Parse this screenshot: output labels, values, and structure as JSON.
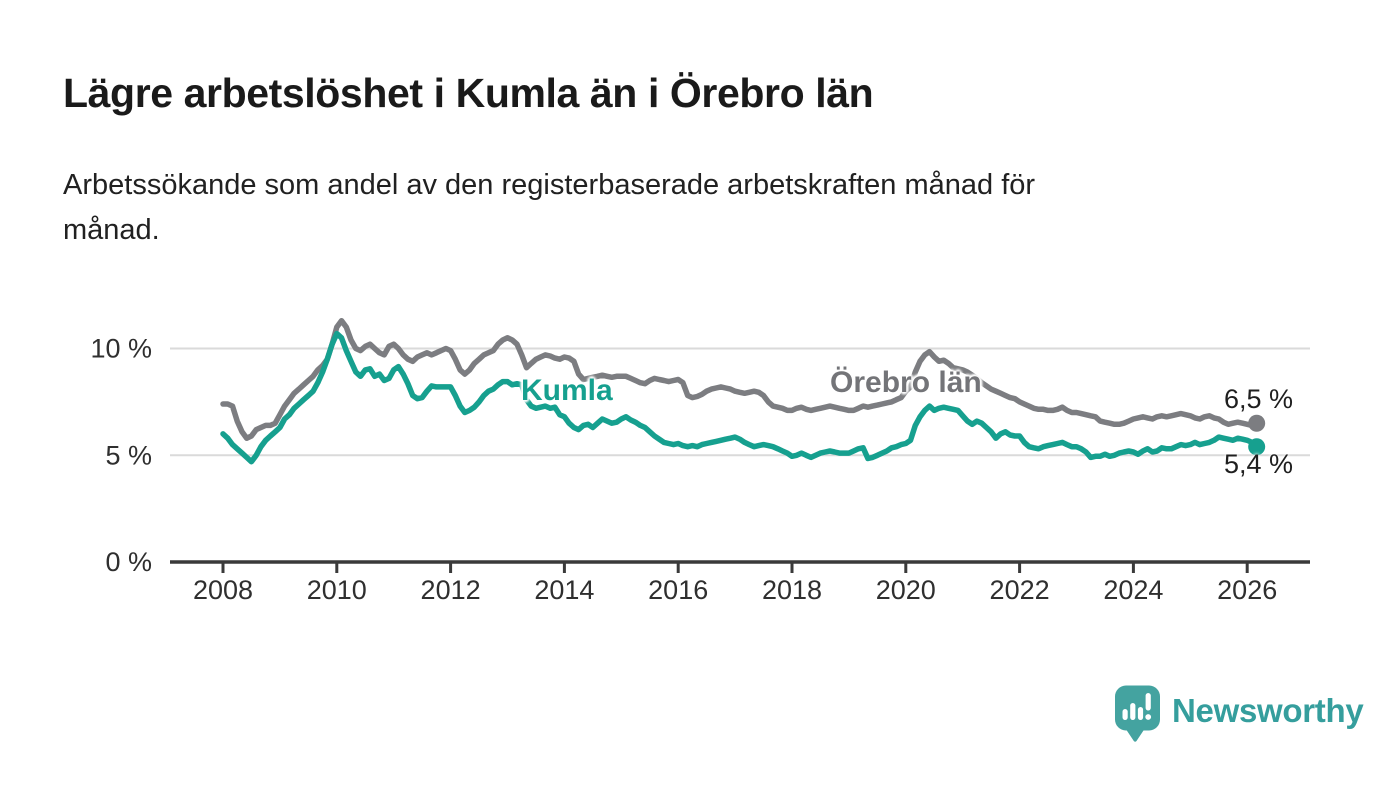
{
  "header": {
    "title": "Lägre arbetslöshet i Kumla än i Örebro län",
    "subtitle": "Arbetssökande som andel av den registerbaserade arbetskraften månad för\nmånad."
  },
  "branding": {
    "logo_text": "Newsworthy",
    "logo_color": "#44a3a0",
    "logo_text_color": "#359e9d"
  },
  "annotations": {
    "series_label_kumla": "Kumla",
    "series_label_orebro": "Örebro län",
    "end_value_orebro": "6,5 %",
    "end_value_kumla": "5,4 %"
  },
  "colors": {
    "kumla_line": "#16a08f",
    "orebro_line": "#7c7d81",
    "grid": "#dadada",
    "axis": "#3a3a3a",
    "axis_text": "#2f2f2f"
  },
  "chart_data": {
    "type": "line",
    "title": "Lägre arbetslöshet i Kumla än i Örebro län",
    "xlabel": "",
    "ylabel": "Arbetssökande som andel av den registerbaserade arbetskraften",
    "unit": "%",
    "frequency": "monthly",
    "start_month": "2008-01",
    "end_month": "2026-03",
    "x_ticks": [
      2008,
      2010,
      2012,
      2014,
      2016,
      2018,
      2020,
      2022,
      2024,
      2026
    ],
    "y_ticks": [
      0,
      5,
      10
    ],
    "y_tick_labels": [
      "0 %",
      "5 %",
      "10 %"
    ],
    "ylim": [
      0,
      11.6
    ],
    "grid": "horizontal",
    "legend_position": "inline-labels",
    "series": [
      {
        "name": "Örebro län",
        "color": "#7c7d81",
        "last_value_label": "6,5 %",
        "values": [
          7.4,
          7.4,
          7.3,
          6.6,
          6.1,
          5.8,
          5.9,
          6.2,
          6.3,
          6.4,
          6.4,
          6.5,
          6.9,
          7.3,
          7.6,
          7.9,
          8.1,
          8.3,
          8.5,
          8.7,
          9.0,
          9.2,
          9.5,
          10.2,
          11.0,
          11.3,
          11.0,
          10.4,
          10.0,
          9.9,
          10.1,
          10.2,
          10.0,
          9.8,
          9.7,
          10.1,
          10.2,
          10.0,
          9.7,
          9.5,
          9.4,
          9.6,
          9.7,
          9.8,
          9.7,
          9.8,
          9.9,
          10.0,
          9.9,
          9.5,
          9.0,
          8.8,
          9.0,
          9.3,
          9.5,
          9.7,
          9.8,
          9.9,
          10.2,
          10.4,
          10.5,
          10.4,
          10.2,
          9.7,
          9.1,
          9.3,
          9.5,
          9.6,
          9.7,
          9.65,
          9.55,
          9.5,
          9.6,
          9.55,
          9.4,
          8.8,
          8.55,
          8.6,
          8.65,
          8.7,
          8.75,
          8.7,
          8.65,
          8.7,
          8.7,
          8.7,
          8.6,
          8.5,
          8.4,
          8.35,
          8.5,
          8.6,
          8.55,
          8.5,
          8.45,
          8.5,
          8.55,
          8.4,
          7.8,
          7.7,
          7.75,
          7.85,
          8.0,
          8.1,
          8.15,
          8.2,
          8.15,
          8.1,
          8.0,
          7.95,
          7.9,
          7.95,
          8.0,
          7.95,
          7.8,
          7.5,
          7.3,
          7.25,
          7.2,
          7.1,
          7.1,
          7.2,
          7.25,
          7.15,
          7.1,
          7.15,
          7.2,
          7.25,
          7.3,
          7.25,
          7.2,
          7.15,
          7.1,
          7.1,
          7.2,
          7.3,
          7.25,
          7.3,
          7.35,
          7.4,
          7.45,
          7.5,
          7.6,
          7.7,
          8.0,
          8.2,
          8.9,
          9.4,
          9.7,
          9.85,
          9.6,
          9.4,
          9.45,
          9.3,
          9.1,
          9.05,
          9.0,
          8.9,
          8.75,
          8.6,
          8.4,
          8.25,
          8.1,
          8.0,
          7.9,
          7.8,
          7.7,
          7.65,
          7.5,
          7.4,
          7.3,
          7.2,
          7.15,
          7.15,
          7.1,
          7.1,
          7.15,
          7.25,
          7.1,
          7.0,
          7.0,
          6.95,
          6.9,
          6.85,
          6.8,
          6.6,
          6.55,
          6.5,
          6.45,
          6.45,
          6.5,
          6.6,
          6.7,
          6.75,
          6.8,
          6.75,
          6.7,
          6.8,
          6.85,
          6.8,
          6.85,
          6.9,
          6.95,
          6.9,
          6.85,
          6.75,
          6.7,
          6.8,
          6.85,
          6.75,
          6.7,
          6.55,
          6.45,
          6.5,
          6.55,
          6.5,
          6.45,
          6.4,
          6.5
        ]
      },
      {
        "name": "Kumla",
        "color": "#16a08f",
        "last_value_label": "5,4 %",
        "values": [
          6.0,
          5.8,
          5.5,
          5.3,
          5.1,
          4.9,
          4.7,
          5.0,
          5.4,
          5.7,
          5.9,
          6.1,
          6.3,
          6.7,
          6.9,
          7.2,
          7.4,
          7.6,
          7.8,
          8.0,
          8.4,
          8.9,
          9.5,
          10.2,
          10.7,
          10.5,
          9.9,
          9.4,
          8.9,
          8.7,
          9.0,
          9.05,
          8.7,
          8.8,
          8.5,
          8.6,
          9.0,
          9.15,
          8.8,
          8.35,
          7.8,
          7.65,
          7.7,
          8.0,
          8.25,
          8.2,
          8.2,
          8.2,
          8.2,
          7.8,
          7.3,
          7.0,
          7.1,
          7.25,
          7.5,
          7.8,
          8.0,
          8.1,
          8.3,
          8.45,
          8.45,
          8.3,
          8.35,
          8.3,
          7.6,
          7.3,
          7.2,
          7.25,
          7.3,
          7.2,
          7.25,
          6.9,
          6.8,
          6.5,
          6.3,
          6.2,
          6.4,
          6.45,
          6.3,
          6.5,
          6.7,
          6.6,
          6.5,
          6.55,
          6.7,
          6.8,
          6.65,
          6.55,
          6.4,
          6.3,
          6.1,
          5.9,
          5.75,
          5.6,
          5.55,
          5.5,
          5.55,
          5.45,
          5.4,
          5.45,
          5.4,
          5.5,
          5.55,
          5.6,
          5.65,
          5.7,
          5.75,
          5.8,
          5.85,
          5.75,
          5.6,
          5.5,
          5.4,
          5.45,
          5.5,
          5.45,
          5.4,
          5.3,
          5.2,
          5.1,
          4.95,
          5.0,
          5.1,
          5.0,
          4.9,
          5.0,
          5.1,
          5.15,
          5.2,
          5.15,
          5.1,
          5.1,
          5.1,
          5.2,
          5.3,
          5.35,
          4.85,
          4.9,
          5.0,
          5.1,
          5.2,
          5.35,
          5.4,
          5.5,
          5.55,
          5.7,
          6.4,
          6.8,
          7.1,
          7.3,
          7.1,
          7.2,
          7.25,
          7.2,
          7.15,
          7.1,
          6.85,
          6.6,
          6.45,
          6.6,
          6.5,
          6.3,
          6.1,
          5.8,
          6.0,
          6.1,
          5.95,
          5.9,
          5.9,
          5.6,
          5.4,
          5.35,
          5.3,
          5.4,
          5.45,
          5.5,
          5.55,
          5.6,
          5.5,
          5.4,
          5.4,
          5.3,
          5.15,
          4.9,
          4.95,
          4.95,
          5.05,
          4.95,
          5.0,
          5.1,
          5.15,
          5.2,
          5.15,
          5.05,
          5.2,
          5.3,
          5.15,
          5.2,
          5.35,
          5.3,
          5.3,
          5.4,
          5.5,
          5.45,
          5.5,
          5.6,
          5.5,
          5.55,
          5.6,
          5.7,
          5.85,
          5.8,
          5.75,
          5.7,
          5.8,
          5.75,
          5.7,
          5.6,
          5.4
        ]
      }
    ]
  }
}
